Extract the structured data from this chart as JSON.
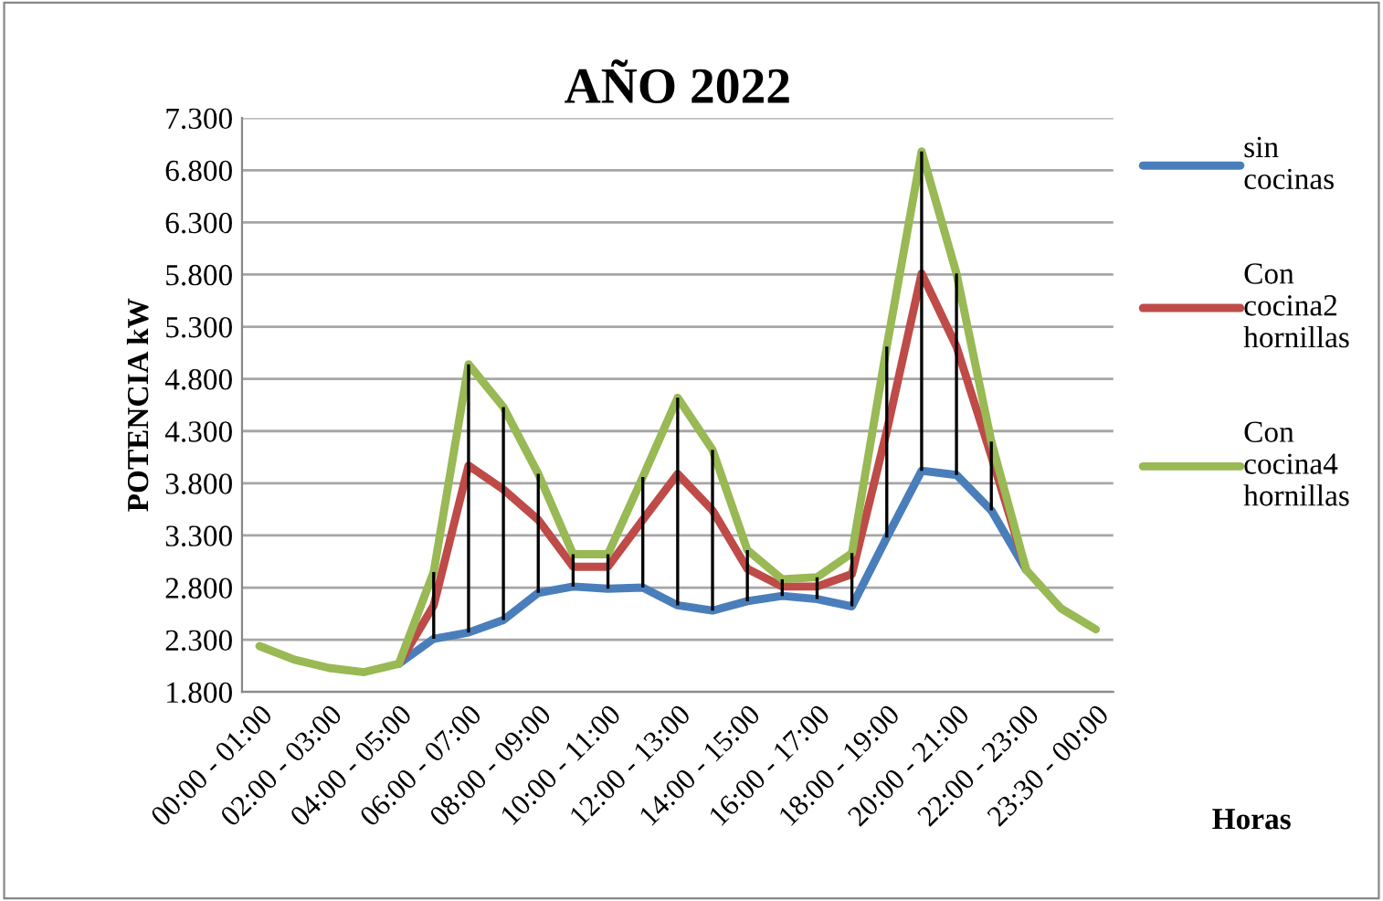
{
  "chart_data": {
    "type": "line",
    "title": "AÑO 2022",
    "xlabel": "Horas",
    "ylabel": "POTENCIA kW",
    "categories": [
      "00:00 - 01:00",
      null,
      "02:00 - 03:00",
      null,
      "04:00 - 05:00",
      null,
      "06:00 - 07:00",
      null,
      "08:00 - 09:00",
      null,
      "10:00 - 11:00",
      null,
      "12:00 - 13:00",
      null,
      "14:00 - 15:00",
      null,
      "16:00 - 17:00",
      null,
      "18:00 - 19:00",
      null,
      "20:00 - 21:00",
      null,
      "22:00 - 23:00",
      null,
      "23:30 - 00:00"
    ],
    "series": [
      {
        "name": "sin cocinas",
        "color": "#4a7ebb",
        "values": [
          null,
          null,
          null,
          null,
          2070,
          2310,
          2370,
          2490,
          2750,
          2810,
          2790,
          2800,
          2630,
          2580,
          2670,
          2720,
          2690,
          2620,
          3280,
          3920,
          3880,
          3540,
          2970,
          null,
          null
        ],
        "errors": [
          null,
          null,
          null,
          null,
          null,
          [
            2310,
            2950
          ],
          [
            2370,
            4940
          ],
          [
            2490,
            4530
          ],
          [
            2750,
            3890
          ],
          [
            2810,
            3120
          ],
          [
            2790,
            3120
          ],
          [
            2800,
            3860
          ],
          [
            2630,
            4620
          ],
          [
            2580,
            4120
          ],
          [
            2670,
            3160
          ],
          [
            2720,
            2880
          ],
          [
            2690,
            2900
          ],
          [
            2620,
            3130
          ],
          [
            3280,
            5110
          ],
          [
            3920,
            6980
          ],
          [
            3880,
            5810
          ],
          [
            3540,
            4200
          ],
          null,
          null,
          null
        ]
      },
      {
        "name": "Con cocina2 hornillas",
        "color": "#be4b48",
        "values": [
          null,
          null,
          null,
          null,
          2070,
          2630,
          3970,
          3740,
          3450,
          3000,
          3000,
          3450,
          3890,
          3540,
          2980,
          2810,
          2810,
          2930,
          4300,
          5810,
          5110,
          4060,
          2970,
          null,
          null
        ]
      },
      {
        "name": "Con cocina4 hornillas",
        "color": "#98b954",
        "values": [
          2240,
          2110,
          2030,
          1990,
          2070,
          2950,
          4940,
          4530,
          3890,
          3120,
          3120,
          3860,
          4620,
          4120,
          3160,
          2880,
          2900,
          3130,
          5110,
          6980,
          5810,
          4200,
          2970,
          2600,
          2400
        ]
      }
    ],
    "ylim": [
      1800,
      7300
    ],
    "yticks": [
      {
        "value": 1800,
        "label": "1.800"
      },
      {
        "value": 2300,
        "label": "2.300"
      },
      {
        "value": 2800,
        "label": "2.800"
      },
      {
        "value": 3300,
        "label": "3.300"
      },
      {
        "value": 3800,
        "label": "3.800"
      },
      {
        "value": 4300,
        "label": "4.300"
      },
      {
        "value": 4800,
        "label": "4.800"
      },
      {
        "value": 5300,
        "label": "5.300"
      },
      {
        "value": 5800,
        "label": "5.800"
      },
      {
        "value": 6300,
        "label": "6.300"
      },
      {
        "value": 6800,
        "label": "6.800"
      },
      {
        "value": 7300,
        "label": "7.300"
      }
    ],
    "grid": "y",
    "legend": "right",
    "marker": "none",
    "line_style": "solid"
  }
}
